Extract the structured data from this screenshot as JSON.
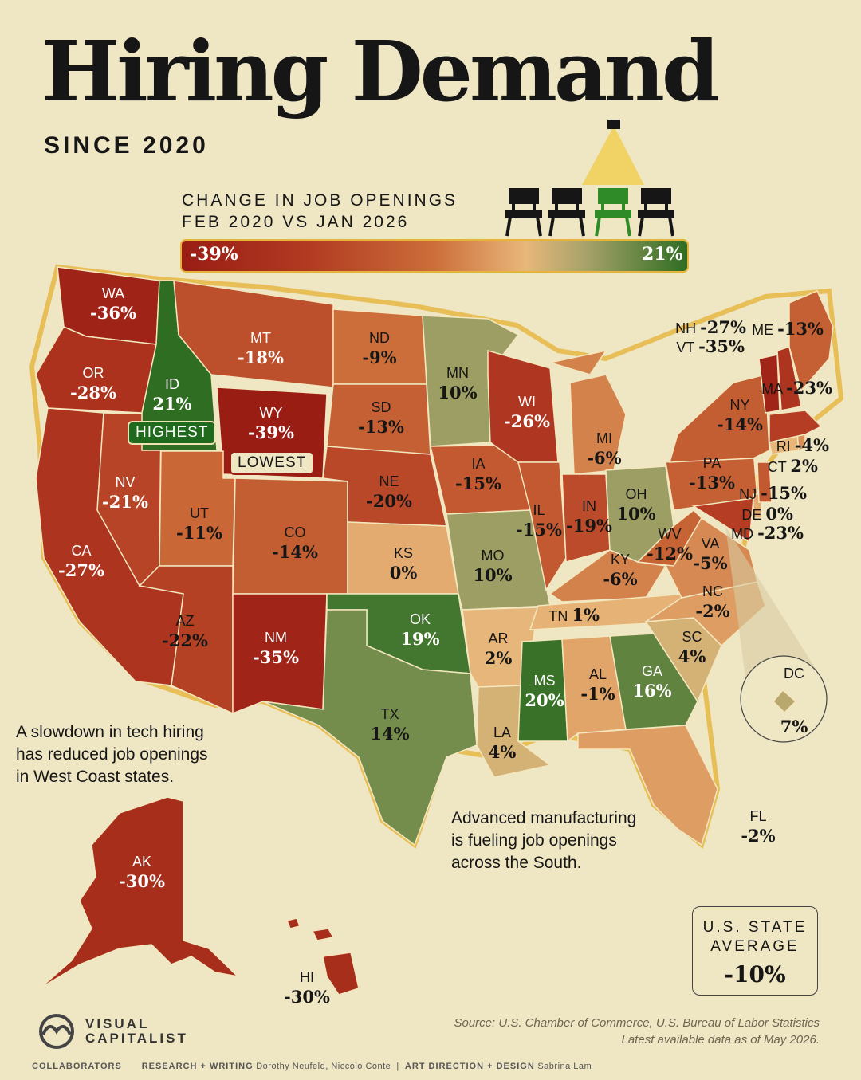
{
  "title": "Hiring Demand",
  "subtitle": "SINCE 2020",
  "legend": {
    "line1": "CHANGE IN JOB OPENINGS",
    "line2": "FEB 2020 VS JAN 2026",
    "min_label": "-39%",
    "max_label": "21%",
    "min_value": -39,
    "max_value": 21
  },
  "badges": {
    "highest": "HIGHEST",
    "lowest": "LOWEST"
  },
  "notes": {
    "west": [
      "A slowdown in tech hiring",
      "has reduced job openings",
      "in West Coast states."
    ],
    "south": [
      "Advanced manufacturing",
      "is fueling job openings",
      "across the South."
    ]
  },
  "average": {
    "line1": "U.S. STATE",
    "line2": "AVERAGE",
    "value": "-10%"
  },
  "source": {
    "line1": "Source: U.S. Chamber of Commerce, U.S. Bureau of Labor Statistics",
    "line2": "Latest available data as of May 2026."
  },
  "logo": {
    "line1": "VISUAL",
    "line2": "CAPITALIST"
  },
  "credits": {
    "collab": "COLLABORATORS",
    "research_label": "RESEARCH + WRITING",
    "research_names": "Dorothy Neufeld, Niccolo Conte",
    "art_label": "ART DIRECTION + DESIGN",
    "art_names": "Sabrina Lam"
  },
  "states": {
    "WA": {
      "label": "WA",
      "value": "-36%",
      "change": -36
    },
    "OR": {
      "label": "OR",
      "value": "-28%",
      "change": -28
    },
    "CA": {
      "label": "CA",
      "value": "-27%",
      "change": -27
    },
    "NV": {
      "label": "NV",
      "value": "-21%",
      "change": -21
    },
    "ID": {
      "label": "ID",
      "value": "21%",
      "change": 21
    },
    "MT": {
      "label": "MT",
      "value": "-18%",
      "change": -18
    },
    "WY": {
      "label": "WY",
      "value": "-39%",
      "change": -39
    },
    "UT": {
      "label": "UT",
      "value": "-11%",
      "change": -11
    },
    "AZ": {
      "label": "AZ",
      "value": "-22%",
      "change": -22
    },
    "CO": {
      "label": "CO",
      "value": "-14%",
      "change": -14
    },
    "NM": {
      "label": "NM",
      "value": "-35%",
      "change": -35
    },
    "ND": {
      "label": "ND",
      "value": "-9%",
      "change": -9
    },
    "SD": {
      "label": "SD",
      "value": "-13%",
      "change": -13
    },
    "NE": {
      "label": "NE",
      "value": "-20%",
      "change": -20
    },
    "KS": {
      "label": "KS",
      "value": "0%",
      "change": 0
    },
    "OK": {
      "label": "OK",
      "value": "19%",
      "change": 19
    },
    "TX": {
      "label": "TX",
      "value": "14%",
      "change": 14
    },
    "MN": {
      "label": "MN",
      "value": "10%",
      "change": 10
    },
    "IA": {
      "label": "IA",
      "value": "-15%",
      "change": -15
    },
    "MO": {
      "label": "MO",
      "value": "10%",
      "change": 10
    },
    "AR": {
      "label": "AR",
      "value": "2%",
      "change": 2
    },
    "LA": {
      "label": "LA",
      "value": "4%",
      "change": 4
    },
    "WI": {
      "label": "WI",
      "value": "-26%",
      "change": -26
    },
    "IL": {
      "label": "IL",
      "value": "-15%",
      "change": -15
    },
    "MI": {
      "label": "MI",
      "value": "-6%",
      "change": -6
    },
    "IN": {
      "label": "IN",
      "value": "-19%",
      "change": -19
    },
    "OH": {
      "label": "OH",
      "value": "10%",
      "change": 10
    },
    "KY": {
      "label": "KY",
      "value": "-6%",
      "change": -6
    },
    "TN": {
      "label": "TN",
      "value": "1%",
      "change": 1
    },
    "MS": {
      "label": "MS",
      "value": "20%",
      "change": 20
    },
    "AL": {
      "label": "AL",
      "value": "-1%",
      "change": -1
    },
    "GA": {
      "label": "GA",
      "value": "16%",
      "change": 16
    },
    "FL": {
      "label": "FL",
      "value": "-2%",
      "change": -2
    },
    "SC": {
      "label": "SC",
      "value": "4%",
      "change": 4
    },
    "NC": {
      "label": "NC",
      "value": "-2%",
      "change": -2
    },
    "VA": {
      "label": "VA",
      "value": "-5%",
      "change": -5
    },
    "WV": {
      "label": "WV",
      "value": "-12%",
      "change": -12
    },
    "PA": {
      "label": "PA",
      "value": "-13%",
      "change": -13
    },
    "NY": {
      "label": "NY",
      "value": "-14%",
      "change": -14
    },
    "ME": {
      "label": "ME",
      "value": "-13%",
      "change": -13
    },
    "NH": {
      "label": "NH",
      "value": "-27%",
      "change": -27
    },
    "VT": {
      "label": "VT",
      "value": "-35%",
      "change": -35
    },
    "MA": {
      "label": "MA",
      "value": "-23%",
      "change": -23
    },
    "RI": {
      "label": "RI",
      "value": "-4%",
      "change": -4
    },
    "CT": {
      "label": "CT",
      "value": "2%",
      "change": 2
    },
    "NJ": {
      "label": "NJ",
      "value": "-15%",
      "change": -15
    },
    "DE": {
      "label": "DE",
      "value": "0%",
      "change": 0
    },
    "MD": {
      "label": "MD",
      "value": "-23%",
      "change": -23
    },
    "DC": {
      "label": "DC",
      "value": "7%",
      "change": 7
    },
    "AK": {
      "label": "AK",
      "value": "-30%",
      "change": -30
    },
    "HI": {
      "label": "HI",
      "value": "-30%",
      "change": -30
    }
  },
  "colors": {
    "background": "#efe6c4",
    "low": "#9a1d14",
    "high": "#2f6d22",
    "border": "#e6b43b"
  }
}
